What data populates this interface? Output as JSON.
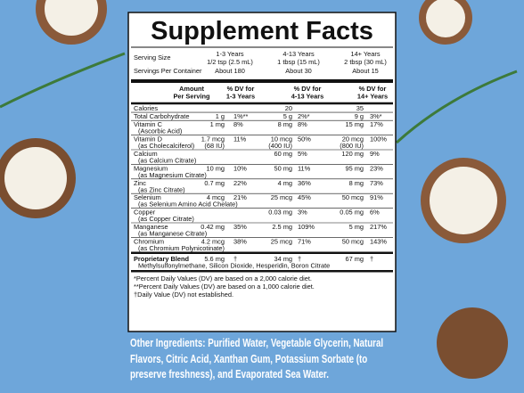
{
  "header": {
    "title": "Supplement Facts"
  },
  "serving": {
    "ages": [
      "1-3 Years",
      "4-13 Years",
      "14+ Years"
    ],
    "size_label": "Serving Size",
    "sizes": [
      "1/2 tsp (2.5 mL)",
      "1 tbsp (15 mL)",
      "2 tbsp (30 mL)"
    ],
    "per_container_label": "Servings Per Container",
    "per_container": [
      "About 180",
      "About 30",
      "About 15"
    ]
  },
  "columns": [
    [
      "Amount",
      "Per Serving"
    ],
    [
      "% DV for",
      "1-3 Years"
    ],
    [
      "% DV for",
      "4-13 Years"
    ],
    [
      "% DV for",
      "14+ Years"
    ]
  ],
  "table": {
    "rows": [
      {
        "name": "Calories",
        "cells": [
          null,
          null,
          "20",
          null,
          "35",
          null
        ]
      },
      {
        "name": "Total Carbohydrate",
        "cells": [
          "1 g",
          "1%**",
          "5 g",
          "2%*",
          "9 g",
          "3%*"
        ]
      },
      {
        "name": "Vitamin C",
        "sub": "(Ascorbic Acid)",
        "cells": [
          "1 mg",
          "8%",
          "8 mg",
          "8%",
          "15 mg",
          "17%"
        ]
      },
      {
        "name": "Vitamin D",
        "sub": "(as Cholecalciferol)",
        "cells": [
          [
            "1.7 mcg",
            "(68 IU)"
          ],
          "11%",
          [
            "10 mcg",
            "(400 IU)"
          ],
          "50%",
          [
            "20 mcg",
            "(800 IU)"
          ],
          "100%"
        ]
      },
      {
        "name": "Calcium",
        "sub": "(as Calcium Citrate)",
        "cells": [
          null,
          null,
          "60 mg",
          "5%",
          "120 mg",
          "9%"
        ]
      },
      {
        "name": "Magnesium",
        "sub": "(as Magnesium Citrate)",
        "cells": [
          "10 mg",
          "10%",
          "50 mg",
          "11%",
          "95 mg",
          "23%"
        ]
      },
      {
        "name": "Zinc",
        "sub": "(as Zinc Citrate)",
        "cells": [
          "0.7 mg",
          "22%",
          "4 mg",
          "36%",
          "8 mg",
          "73%"
        ]
      },
      {
        "name": "Selenium",
        "sub": "(as Selenium Amino Acid Chelate)",
        "cells": [
          "4 mcg",
          "21%",
          "25 mcg",
          "45%",
          "50 mcg",
          "91%"
        ]
      },
      {
        "name": "Copper",
        "sub": "(as Copper Citrate)",
        "cells": [
          null,
          null,
          "0.03 mg",
          "3%",
          "0.05 mg",
          "6%"
        ]
      },
      {
        "name": "Manganese",
        "sub": "(as Manganese Citrate)",
        "cells": [
          "0.42 mg",
          "35%",
          "2.5 mg",
          "109%",
          "5 mg",
          "217%"
        ]
      },
      {
        "name": "Chromium",
        "sub": "(as Chromium Polynicotinate)",
        "cells": [
          "4.2 mcg",
          "38%",
          "25 mcg",
          "71%",
          "50 mcg",
          "143%"
        ]
      }
    ],
    "blend": {
      "name": "Proprietary Blend",
      "sub": "Methylsulfonylmethane, Silicon Dioxide, Hesperidin, Boron Citrate",
      "cells": [
        "5.6 mg",
        "†",
        "34 mg",
        "†",
        "67 mg",
        "†"
      ]
    }
  },
  "footnotes": [
    "*Percent Daily Values (DV) are based on a 2,000 calorie diet.",
    "**Percent Daily Values (DV) are based on a 1,000 calorie diet.",
    "†Daily Value (DV) not established."
  ],
  "other_ingredients": "Other Ingredients: Purified Water, Vegetable Glycerin, Natural Flavors, Citric Acid, Xanthan Gum, Potassium Sorbate (to preserve freshness), and Evaporated Sea Water."
}
